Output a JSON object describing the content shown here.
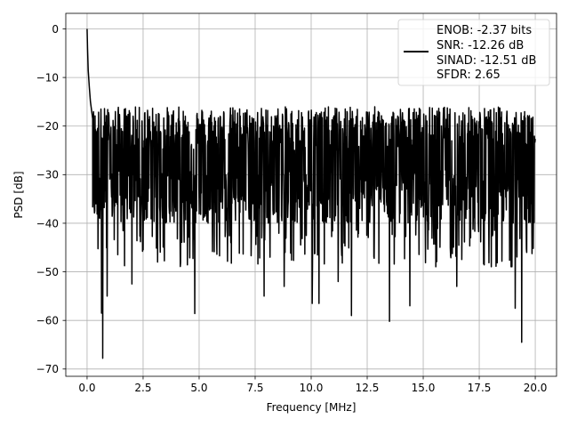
{
  "chart_data": {
    "type": "line",
    "xlabel": "Frequency [MHz]",
    "ylabel": "PSD [dB]",
    "xlim": [
      -0.95,
      20.95
    ],
    "ylim": [
      -71.5,
      3.2
    ],
    "xticks": [
      0.0,
      2.5,
      5.0,
      7.5,
      10.0,
      12.5,
      15.0,
      17.5,
      20.0
    ],
    "xtick_labels": [
      "0.0",
      "2.5",
      "5.0",
      "7.5",
      "10.0",
      "12.5",
      "15.0",
      "17.5",
      "20.0"
    ],
    "yticks": [
      0,
      -10,
      -20,
      -30,
      -40,
      -50,
      -60,
      -70
    ],
    "ytick_labels": [
      "0",
      "−10",
      "−20",
      "−30",
      "−40",
      "−50",
      "−60",
      "−70"
    ],
    "grid": true,
    "legend_placement": "upper-right",
    "line_color": "#000000",
    "legend": {
      "lines": [
        "ENOB: -2.37 bits",
        "SNR: -12.26 dB",
        "SINAD: -12.51 dB",
        "SFDR: 2.65"
      ]
    },
    "series": [
      {
        "x_start": 0.0,
        "x_end": 20.0,
        "peak": {
          "x": 0.0,
          "y": 0.0
        },
        "initial_decay": [
          [
            0.0,
            0.0
          ],
          [
            0.02,
            -4.0
          ],
          [
            0.05,
            -8.5
          ],
          [
            0.1,
            -12.0
          ],
          [
            0.15,
            -15.0
          ],
          [
            0.25,
            -18.5
          ]
        ],
        "noise_floor_median": -29,
        "noise_upper_envelope": -16,
        "deep_minima": [
          {
            "x": 0.7,
            "y": -67.8
          },
          {
            "x": 0.65,
            "y": -58.5
          },
          {
            "x": 0.9,
            "y": -55.0
          },
          {
            "x": 2.0,
            "y": -52.5
          },
          {
            "x": 4.8,
            "y": -58.6
          },
          {
            "x": 7.9,
            "y": -55.0
          },
          {
            "x": 10.05,
            "y": -56.5
          },
          {
            "x": 10.35,
            "y": -56.5
          },
          {
            "x": 11.8,
            "y": -59.0
          },
          {
            "x": 13.5,
            "y": -60.2
          },
          {
            "x": 14.4,
            "y": -57.0
          },
          {
            "x": 19.4,
            "y": -64.5
          },
          {
            "x": 19.1,
            "y": -57.5
          },
          {
            "x": 16.5,
            "y": -53.0
          },
          {
            "x": 8.8,
            "y": -53.0
          },
          {
            "x": 11.2,
            "y": -52.0
          }
        ],
        "values_note": ""
      }
    ]
  }
}
